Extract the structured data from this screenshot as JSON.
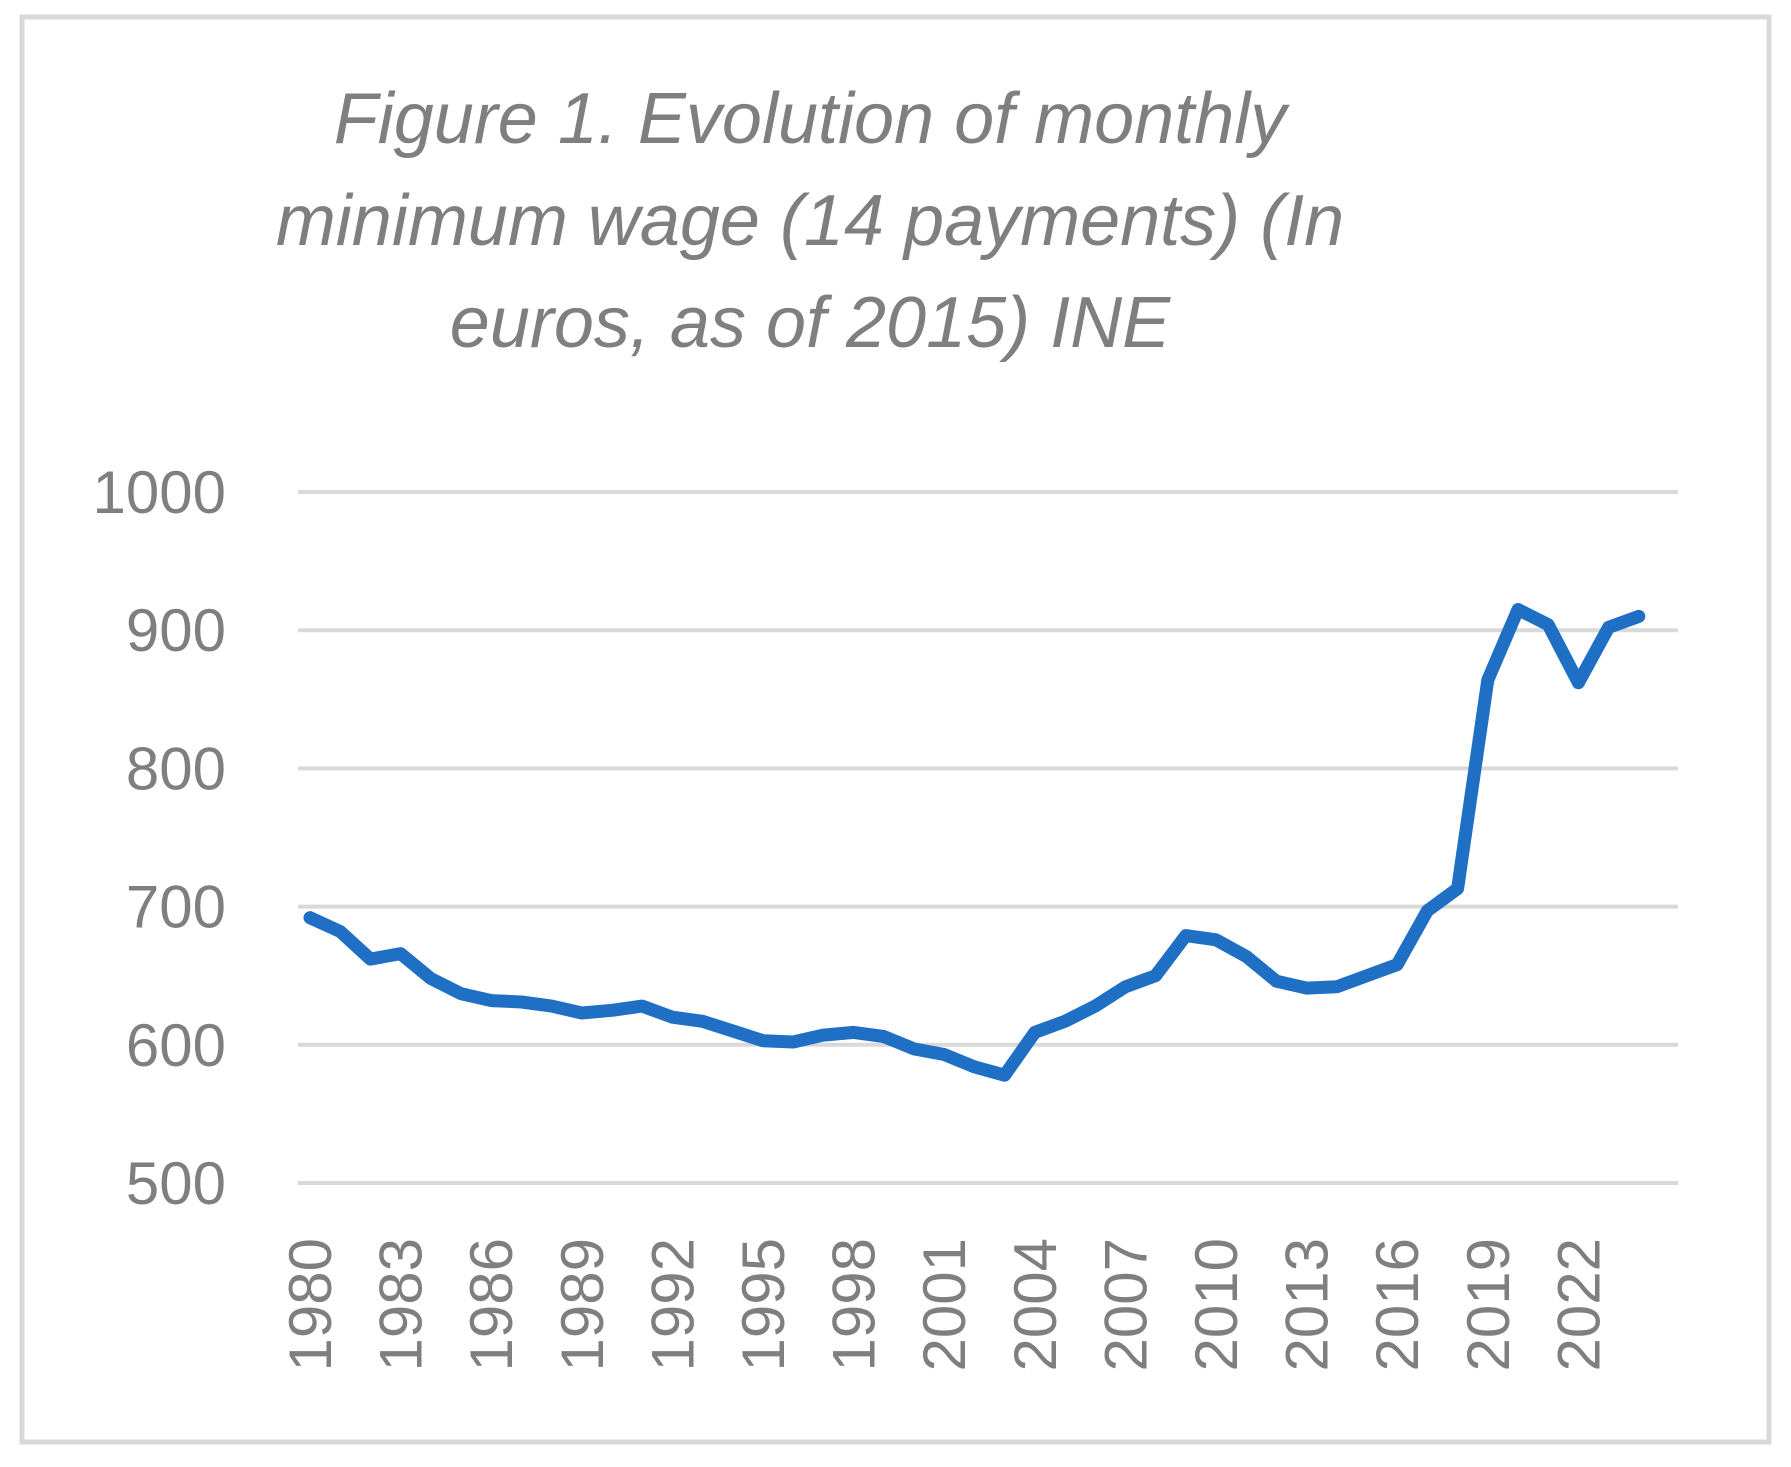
{
  "chart_data": {
    "type": "line",
    "title_lines": [
      "Figure 1. Evolution of monthly",
      "minimum wage (14 payments) (In",
      "euros, as of 2015) INE"
    ],
    "title": "Figure 1. Evolution of monthly minimum wage (14 payments) (In euros, as of 2015) INE",
    "xlabel": "",
    "ylabel": "",
    "ylim": [
      500,
      1000
    ],
    "y_ticks": [
      500,
      600,
      700,
      800,
      900,
      1000
    ],
    "x_tick_labels": [
      "1980",
      "1983",
      "1986",
      "1989",
      "1992",
      "1995",
      "1998",
      "2001",
      "2004",
      "2007",
      "2010",
      "2013",
      "2016",
      "2019",
      "2022"
    ],
    "grid": true,
    "legend": "none",
    "series": [
      {
        "name": "Monthly minimum wage",
        "color": "#1f6fc5",
        "x": [
          1980,
          1981,
          1982,
          1983,
          1984,
          1985,
          1986,
          1987,
          1988,
          1989,
          1990,
          1991,
          1992,
          1993,
          1994,
          1995,
          1996,
          1997,
          1998,
          1999,
          2000,
          2001,
          2002,
          2003,
          2004,
          2005,
          2006,
          2007,
          2008,
          2009,
          2010,
          2011,
          2012,
          2013,
          2014,
          2015,
          2016,
          2017,
          2018,
          2019,
          2020,
          2021,
          2022,
          2023,
          2024
        ],
        "values": [
          692,
          682,
          662,
          666,
          648,
          637,
          632,
          631,
          628,
          623,
          625,
          628,
          620,
          617,
          610,
          603,
          602,
          607,
          609,
          606,
          597,
          593,
          584,
          578,
          609,
          617,
          628,
          642,
          650,
          679,
          676,
          664,
          646,
          641,
          642,
          650,
          658,
          697,
          713,
          864,
          915,
          904,
          862,
          902,
          910
        ]
      }
    ]
  }
}
